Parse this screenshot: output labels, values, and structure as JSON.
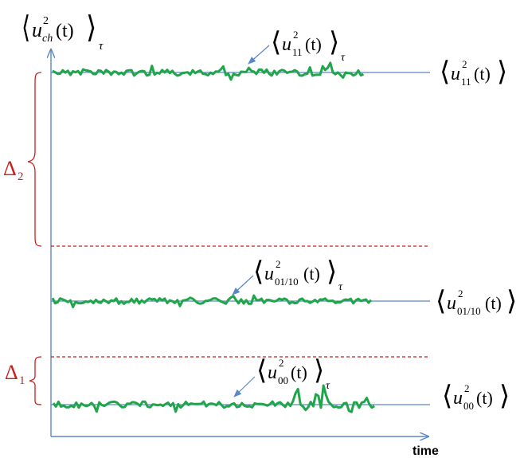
{
  "axis": {
    "x_label": "time",
    "y_label": {
      "symbol": "u",
      "sup": "2",
      "sub": "ch",
      "arg": "(t)",
      "tau": "τ"
    }
  },
  "levels": [
    {
      "name": "u11",
      "sub": "11",
      "right_label": {
        "symbol": "u",
        "sup": "2",
        "sub": "11",
        "arg": "(t)"
      },
      "avg_label": {
        "symbol": "u",
        "sup": "2",
        "sub": "11",
        "arg": "(t)",
        "tau": "τ"
      }
    },
    {
      "name": "u01",
      "sub": "01/10",
      "right_label": {
        "symbol": "u",
        "sup": "2",
        "sub": "01/10",
        "arg": "(t)"
      },
      "avg_label": {
        "symbol": "u",
        "sup": "2",
        "sub": "01/10",
        "arg": "(t)",
        "tau": "τ"
      }
    },
    {
      "name": "u00",
      "sub": "00",
      "right_label": {
        "symbol": "u",
        "sup": "2",
        "sub": "00",
        "arg": "(t)"
      },
      "avg_label": {
        "symbol": "u",
        "sup": "2",
        "sub": "00",
        "arg": "(t)",
        "tau": "τ"
      }
    }
  ],
  "gaps": [
    {
      "symbol": "Δ",
      "sub": "2"
    },
    {
      "symbol": "Δ",
      "sub": "1"
    }
  ],
  "colors": {
    "axis": "#5b86c7",
    "baseline": "#5b86c7",
    "trace": "#1fa64a",
    "gap": "#c8201c",
    "pointer": "#5b86c7"
  }
}
